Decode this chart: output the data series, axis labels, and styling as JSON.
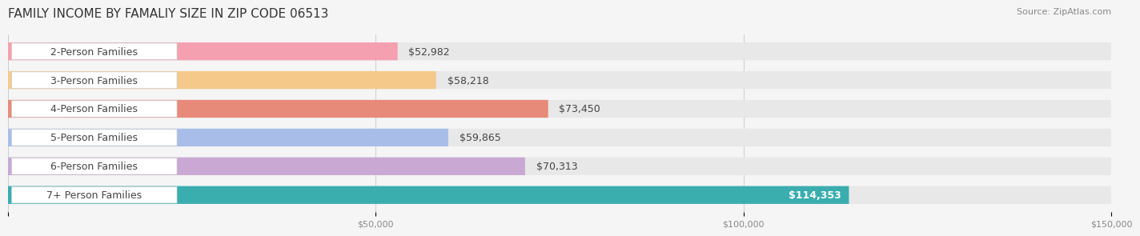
{
  "title": "FAMILY INCOME BY FAMALIY SIZE IN ZIP CODE 06513",
  "source": "Source: ZipAtlas.com",
  "categories": [
    "2-Person Families",
    "3-Person Families",
    "4-Person Families",
    "5-Person Families",
    "6-Person Families",
    "7+ Person Families"
  ],
  "values": [
    52982,
    58218,
    73450,
    59865,
    70313,
    114353
  ],
  "bar_colors": [
    "#F4A0B0",
    "#F5C98A",
    "#E88A7A",
    "#A8BEE8",
    "#C9A8D4",
    "#3AADAF"
  ],
  "label_bg_colors": [
    "#F4A0B0",
    "#F5C98A",
    "#E88A7A",
    "#A8BEE8",
    "#C9A8D4",
    "#3AADAF"
  ],
  "value_labels": [
    "$52,982",
    "$58,218",
    "$73,450",
    "$59,865",
    "$70,313",
    "$114,353"
  ],
  "xlim": [
    0,
    150000
  ],
  "xticks": [
    0,
    50000,
    100000,
    150000
  ],
  "xticklabels": [
    "",
    "$50,000",
    "$100,000",
    "$150,000"
  ],
  "bar_height": 0.62,
  "background_color": "#f5f5f5",
  "bar_background_color": "#e8e8e8",
  "title_fontsize": 11,
  "source_fontsize": 8,
  "label_fontsize": 9,
  "value_fontsize": 9
}
